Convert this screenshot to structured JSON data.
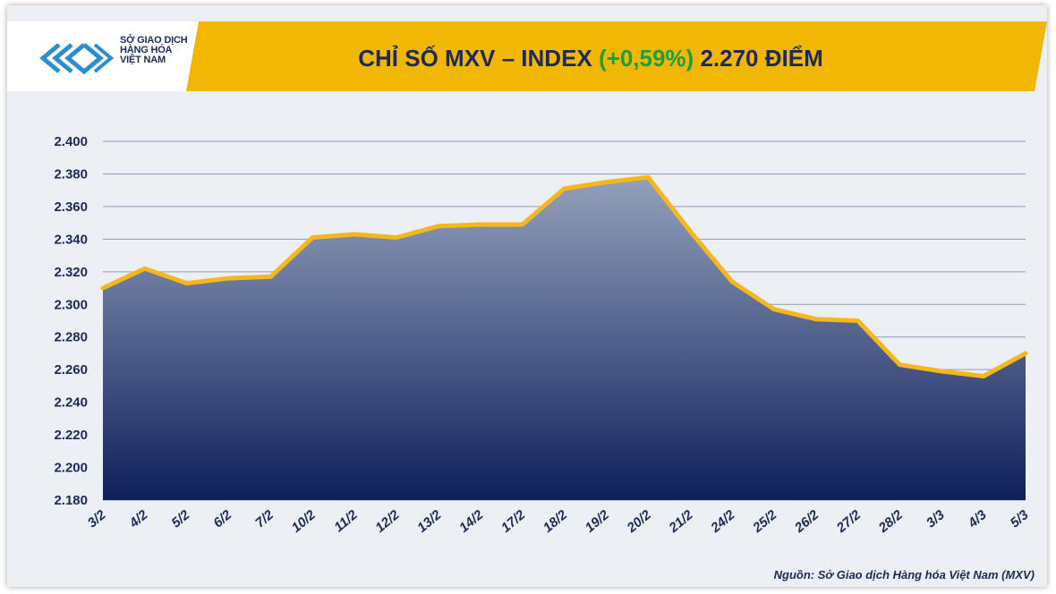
{
  "logo": {
    "line1": "SỞ GIAO DỊCH",
    "line2": "HÀNG HÓA",
    "line3": "VIỆT NAM"
  },
  "header": {
    "title_prefix": "CHỈ SỐ MXV – INDEX",
    "title_change": "(+0,59%)",
    "title_value": "2.270 ĐIỂM",
    "accent_color": "#f2b705",
    "change_color": "#1f9e3a"
  },
  "source": "Nguồn: Sở Giao dịch Hàng hóa Việt Nam (MXV)",
  "chart_data": {
    "type": "area",
    "categories": [
      "3/2",
      "4/2",
      "5/2",
      "6/2",
      "7/2",
      "10/2",
      "11/2",
      "12/2",
      "13/2",
      "14/2",
      "17/2",
      "18/2",
      "19/2",
      "20/2",
      "21/2",
      "24/2",
      "25/2",
      "26/2",
      "27/2",
      "28/2",
      "3/3",
      "4/3",
      "5/3"
    ],
    "values": [
      2310,
      2322,
      2313,
      2316,
      2317,
      2341,
      2343,
      2341,
      2348,
      2349,
      2349,
      2371,
      2375,
      2378,
      2345,
      2314,
      2297,
      2291,
      2290,
      2263,
      2259,
      2256,
      2270
    ],
    "yticks": [
      "2.400",
      "2.380",
      "2.360",
      "2.340",
      "2.320",
      "2.300",
      "2.280",
      "2.260",
      "2.240",
      "2.220",
      "2.200",
      "2.180"
    ],
    "ylim": [
      2180,
      2400
    ],
    "title": "CHỈ SỐ MXV – INDEX (+0,59%) 2.270 ĐIỂM",
    "xlabel": "",
    "ylabel": "",
    "grid": true,
    "line_color": "#f5b71c",
    "fill_top_color": "#8e9cb8",
    "fill_bottom_color": "#0e1f5b"
  }
}
